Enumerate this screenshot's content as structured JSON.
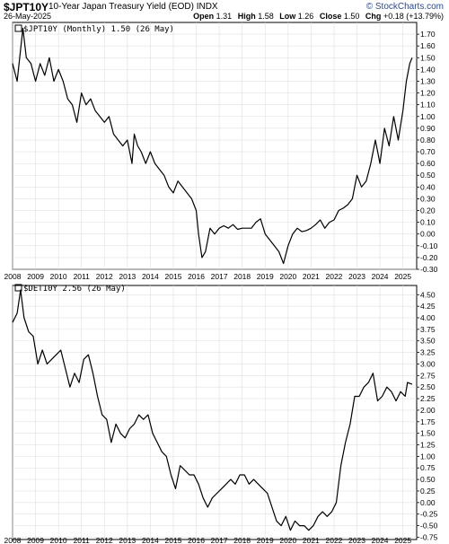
{
  "header": {
    "symbol": "$JPT10Y",
    "description": "10-Year Japan Treasury Yield (EOD) INDX",
    "date": "26-May-2025",
    "brand": "© StockCharts.com",
    "open_label": "Open",
    "open": "1.31",
    "high_label": "High",
    "high": "1.58",
    "low_label": "Low",
    "low": "1.26",
    "close_label": "Close",
    "close": "1.50",
    "chg_label": "Chg",
    "chg": "+0.18 (+13.79%)"
  },
  "chart_data": [
    {
      "type": "line",
      "legend": "$JPT10Y (Monthly) 1.50 (26 May)",
      "ylim": [
        -0.3,
        1.8
      ],
      "yticks": [
        "-0.30",
        "-0.20",
        "-0.10",
        "0.00",
        "0.10",
        "0.20",
        "0.30",
        "0.40",
        "0.50",
        "0.60",
        "0.70",
        "0.80",
        "0.90",
        "1.00",
        "1.10",
        "1.20",
        "1.30",
        "1.40",
        "1.50",
        "1.60",
        "1.70"
      ],
      "xlabels": [
        "2008",
        "2009",
        "2010",
        "2011",
        "2012",
        "2013",
        "2014",
        "2015",
        "2016",
        "2017",
        "2018",
        "2019",
        "2020",
        "2021",
        "2022",
        "2023",
        "2024",
        "2025"
      ],
      "x": [
        2008.0,
        2008.2,
        2008.45,
        2008.6,
        2008.8,
        2009.0,
        2009.2,
        2009.4,
        2009.6,
        2009.8,
        2010.0,
        2010.2,
        2010.4,
        2010.6,
        2010.8,
        2011.0,
        2011.2,
        2011.4,
        2011.6,
        2011.8,
        2012.0,
        2012.2,
        2012.4,
        2012.6,
        2012.8,
        2013.0,
        2013.2,
        2013.3,
        2013.45,
        2013.6,
        2013.8,
        2014.0,
        2014.2,
        2014.4,
        2014.6,
        2014.8,
        2015.0,
        2015.2,
        2015.4,
        2015.6,
        2015.8,
        2016.0,
        2016.1,
        2016.25,
        2016.4,
        2016.6,
        2016.8,
        2017.0,
        2017.2,
        2017.4,
        2017.6,
        2017.8,
        2018.0,
        2018.2,
        2018.4,
        2018.6,
        2018.8,
        2019.0,
        2019.2,
        2019.4,
        2019.6,
        2019.8,
        2020.0,
        2020.2,
        2020.4,
        2020.6,
        2020.8,
        2021.0,
        2021.2,
        2021.4,
        2021.6,
        2021.8,
        2022.0,
        2022.2,
        2022.4,
        2022.6,
        2022.8,
        2023.0,
        2023.2,
        2023.4,
        2023.6,
        2023.8,
        2024.0,
        2024.2,
        2024.4,
        2024.6,
        2024.8,
        2025.0,
        2025.15,
        2025.3,
        2025.4
      ],
      "y": [
        1.45,
        1.3,
        1.75,
        1.5,
        1.45,
        1.3,
        1.45,
        1.35,
        1.5,
        1.3,
        1.4,
        1.3,
        1.15,
        1.1,
        0.95,
        1.2,
        1.1,
        1.15,
        1.05,
        1.0,
        0.95,
        1.0,
        0.85,
        0.8,
        0.75,
        0.8,
        0.6,
        0.85,
        0.75,
        0.7,
        0.6,
        0.7,
        0.6,
        0.55,
        0.5,
        0.4,
        0.35,
        0.45,
        0.4,
        0.35,
        0.3,
        0.2,
        0.0,
        -0.2,
        -0.15,
        0.05,
        0.0,
        0.05,
        0.07,
        0.05,
        0.08,
        0.04,
        0.05,
        0.05,
        0.05,
        0.1,
        0.13,
        0.0,
        -0.05,
        -0.1,
        -0.15,
        -0.25,
        -0.1,
        0.0,
        0.05,
        0.02,
        0.03,
        0.05,
        0.08,
        0.12,
        0.05,
        0.1,
        0.12,
        0.2,
        0.22,
        0.25,
        0.3,
        0.5,
        0.4,
        0.45,
        0.6,
        0.8,
        0.6,
        0.9,
        0.75,
        1.0,
        0.8,
        1.05,
        1.3,
        1.45,
        1.5
      ]
    },
    {
      "type": "line",
      "legend": "$DET10Y 2.56 (26 May)",
      "ylim": [
        -0.8,
        4.7
      ],
      "yticks": [
        "-0.75",
        "-0.50",
        "-0.25",
        "0.00",
        "0.25",
        "0.50",
        "0.75",
        "1.00",
        "1.25",
        "1.50",
        "1.75",
        "2.00",
        "2.25",
        "2.50",
        "2.75",
        "3.00",
        "3.25",
        "3.50",
        "3.75",
        "4.00",
        "4.25",
        "4.50"
      ],
      "xlabels": [
        "2008",
        "2009",
        "2010",
        "2011",
        "2012",
        "2013",
        "2014",
        "2015",
        "2016",
        "2017",
        "2018",
        "2019",
        "2020",
        "2021",
        "2022",
        "2023",
        "2024",
        "2025"
      ],
      "x": [
        2008.0,
        2008.2,
        2008.35,
        2008.5,
        2008.7,
        2008.9,
        2009.1,
        2009.3,
        2009.5,
        2009.7,
        2009.9,
        2010.1,
        2010.3,
        2010.5,
        2010.7,
        2010.9,
        2011.1,
        2011.3,
        2011.5,
        2011.7,
        2011.9,
        2012.1,
        2012.3,
        2012.5,
        2012.7,
        2012.9,
        2013.1,
        2013.3,
        2013.5,
        2013.7,
        2013.9,
        2014.1,
        2014.3,
        2014.5,
        2014.7,
        2014.9,
        2015.1,
        2015.3,
        2015.5,
        2015.7,
        2015.9,
        2016.1,
        2016.3,
        2016.5,
        2016.7,
        2016.9,
        2017.1,
        2017.3,
        2017.5,
        2017.7,
        2017.9,
        2018.1,
        2018.3,
        2018.5,
        2018.7,
        2018.9,
        2019.1,
        2019.3,
        2019.5,
        2019.7,
        2019.9,
        2020.1,
        2020.3,
        2020.5,
        2020.7,
        2020.9,
        2021.1,
        2021.3,
        2021.5,
        2021.7,
        2021.9,
        2022.1,
        2022.3,
        2022.5,
        2022.7,
        2022.9,
        2023.1,
        2023.3,
        2023.5,
        2023.7,
        2023.9,
        2024.1,
        2024.3,
        2024.5,
        2024.7,
        2024.9,
        2025.1,
        2025.2,
        2025.4
      ],
      "y": [
        3.9,
        4.1,
        4.6,
        4.0,
        3.7,
        3.6,
        3.0,
        3.3,
        3.0,
        3.1,
        3.2,
        3.3,
        2.9,
        2.5,
        2.8,
        2.6,
        3.1,
        3.2,
        2.8,
        2.3,
        1.9,
        1.8,
        1.3,
        1.7,
        1.5,
        1.4,
        1.6,
        1.7,
        1.9,
        1.8,
        1.9,
        1.5,
        1.3,
        1.1,
        1.0,
        0.6,
        0.3,
        0.8,
        0.7,
        0.6,
        0.6,
        0.4,
        0.1,
        -0.1,
        0.1,
        0.2,
        0.3,
        0.4,
        0.5,
        0.4,
        0.6,
        0.6,
        0.4,
        0.5,
        0.4,
        0.3,
        0.2,
        -0.1,
        -0.4,
        -0.5,
        -0.3,
        -0.6,
        -0.4,
        -0.5,
        -0.5,
        -0.6,
        -0.5,
        -0.3,
        -0.2,
        -0.3,
        -0.2,
        0.0,
        0.8,
        1.3,
        1.7,
        2.3,
        2.3,
        2.5,
        2.6,
        2.8,
        2.2,
        2.3,
        2.5,
        2.4,
        2.2,
        2.4,
        2.3,
        2.6,
        2.56
      ]
    }
  ],
  "colors": {
    "line": "#000000",
    "grid": "#e0e0e0",
    "axis": "#000000"
  }
}
